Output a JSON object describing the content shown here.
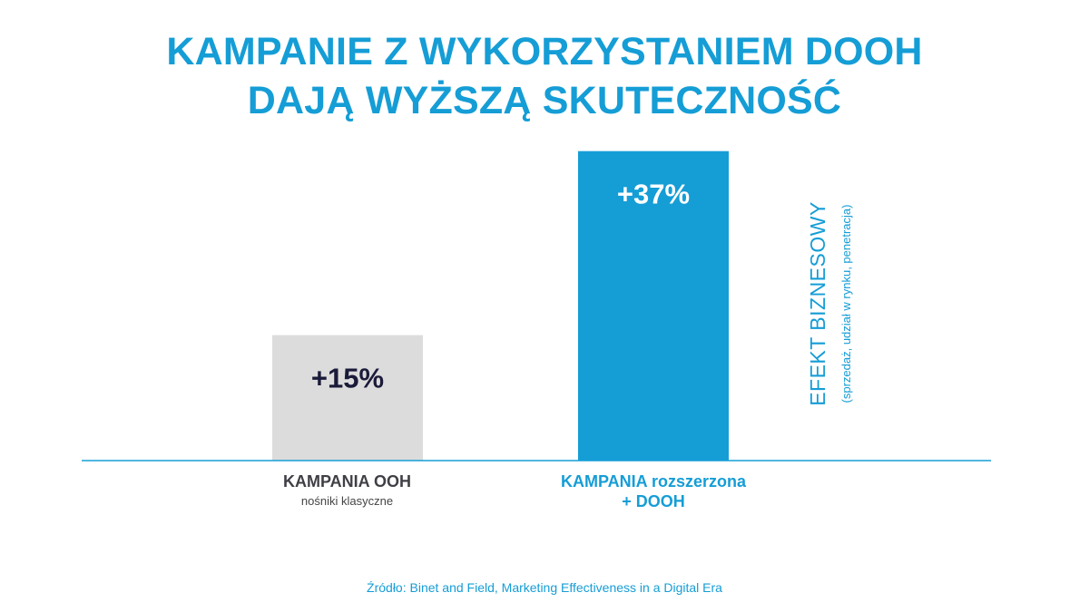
{
  "title": {
    "line1": "KAMPANIE Z WYKORZYSTANIEM DOOH",
    "line2": "DAJĄ WYŻSZĄ SKUTECZNOŚĆ"
  },
  "chart_data": {
    "type": "bar",
    "categories": [
      "KAMPANIA OOH",
      "KAMPANIA rozszerzona + DOOH"
    ],
    "values": [
      15,
      37
    ],
    "data_labels": [
      "+15%",
      "+37%"
    ],
    "bar_colors": [
      "#dcdcdc",
      "#159dd6"
    ],
    "data_label_colors": [
      "#1a1a3a",
      "#ffffff"
    ],
    "ylim": [
      0,
      40
    ],
    "ylabel": "EFEKT BIZNESOWY",
    "ylabel_sub": "(sprzedaż, udział w rynku, penetracja)",
    "grid": false
  },
  "category_labels": {
    "ooh_main": "KAMPANIA OOH",
    "ooh_sub": "nośniki klasyczne",
    "dooh_line1": "KAMPANIA rozszerzona",
    "dooh_line2": "+ DOOH"
  },
  "source": "Źródło: Binet and Field, Marketing Effectiveness in a Digital Era",
  "colors": {
    "accent": "#159dd6",
    "grey_bar": "#dcdcdc",
    "dark_text": "#1a1a3a"
  }
}
